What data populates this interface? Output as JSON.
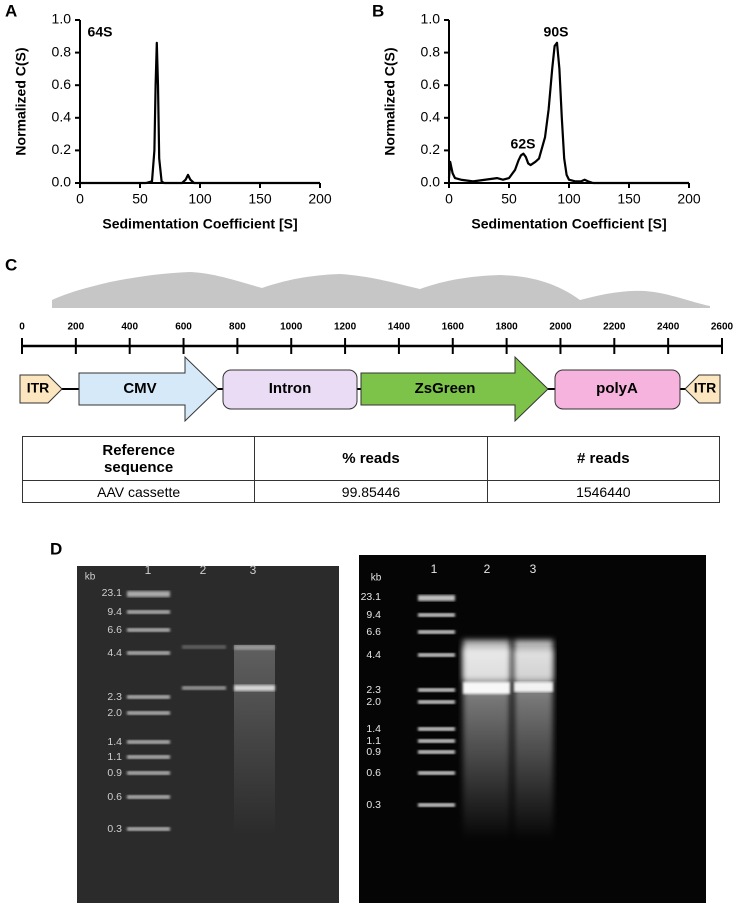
{
  "panel_labels": [
    "A",
    "B",
    "C",
    "D"
  ],
  "chart_data": [
    {
      "type": "line",
      "y_label": "Normalized C(S)",
      "x_label": "Sedimentation Coefficient [S]",
      "x": [
        0,
        10,
        20,
        30,
        40,
        50,
        55,
        60,
        62,
        63,
        64,
        65,
        66,
        68,
        70,
        80,
        85,
        88,
        90,
        92,
        95,
        100,
        120,
        150,
        200
      ],
      "values": [
        0,
        0,
        0,
        0,
        0,
        0,
        0,
        0.01,
        0.2,
        0.6,
        0.86,
        0.6,
        0.15,
        0.01,
        0,
        0,
        0,
        0.02,
        0.05,
        0.02,
        0,
        0,
        0,
        0,
        0
      ],
      "color": "#000000",
      "annotations": [
        "64S"
      ],
      "xlim": [
        0,
        200
      ],
      "xticks": [
        0,
        50,
        100,
        150,
        200
      ],
      "ylim": [
        0,
        1
      ],
      "yticks": [
        {
          "value": 0,
          "label": "0.0"
        },
        0.2,
        0.4,
        0.6,
        0.8,
        {
          "value": 1,
          "label": "1.0"
        }
      ]
    },
    {
      "type": "line",
      "y_label": "Normalized C(S)",
      "x_label": "Sedimentation Coefficient [S]",
      "x": [
        0,
        1,
        3,
        5,
        10,
        20,
        30,
        40,
        45,
        50,
        55,
        58,
        60,
        62,
        64,
        66,
        68,
        72,
        75,
        80,
        83,
        86,
        88,
        90,
        92,
        94,
        96,
        98,
        100,
        105,
        110,
        113,
        116,
        120,
        150,
        200
      ],
      "values": [
        0.03,
        0.13,
        0.06,
        0.03,
        0.02,
        0.01,
        0.02,
        0.03,
        0.02,
        0.03,
        0.08,
        0.14,
        0.17,
        0.18,
        0.16,
        0.12,
        0.11,
        0.13,
        0.15,
        0.28,
        0.45,
        0.7,
        0.84,
        0.86,
        0.7,
        0.4,
        0.15,
        0.05,
        0.02,
        0.01,
        0.01,
        0.02,
        0.01,
        0,
        0,
        0
      ],
      "color": "#000000",
      "annotations": [
        "62S",
        "90S"
      ],
      "xlim": [
        0,
        200
      ],
      "xticks": [
        0,
        50,
        100,
        150,
        200
      ],
      "ylim": [
        0,
        1
      ],
      "yticks": [
        {
          "value": 0,
          "label": "0.0"
        },
        0.2,
        0.4,
        0.6,
        0.8,
        {
          "value": 1,
          "label": "1.0"
        }
      ]
    }
  ],
  "ruler": {
    "ticks": [
      0,
      200,
      400,
      600,
      800,
      1000,
      1200,
      1400,
      1600,
      1800,
      2000,
      2200,
      2400,
      2600
    ]
  },
  "elements": [
    "ITR",
    "CMV",
    "Intron",
    "ZsGreen",
    "polyA",
    "ITR"
  ],
  "table": {
    "header": [
      "Reference sequence",
      "% reads",
      "# reads"
    ],
    "rows": [
      [
        "AAV cassette",
        "99.85446",
        "1546440"
      ]
    ]
  },
  "gels": [
    {
      "unit": "kb",
      "lanes": [
        "1",
        "2",
        "3"
      ],
      "markers": [
        "23.1",
        "9.4",
        "6.6",
        "4.4",
        "2.3",
        "2.0",
        "1.4",
        "1.1",
        "0.9",
        "0.6",
        "0.3"
      ]
    },
    {
      "unit": "kb",
      "lanes": [
        "1",
        "2",
        "3"
      ],
      "markers": [
        "23.1",
        "9.4",
        "6.6",
        "4.4",
        "2.3",
        "2.0",
        "1.4",
        "1.1",
        "0.9",
        "0.6",
        "0.3"
      ]
    }
  ]
}
